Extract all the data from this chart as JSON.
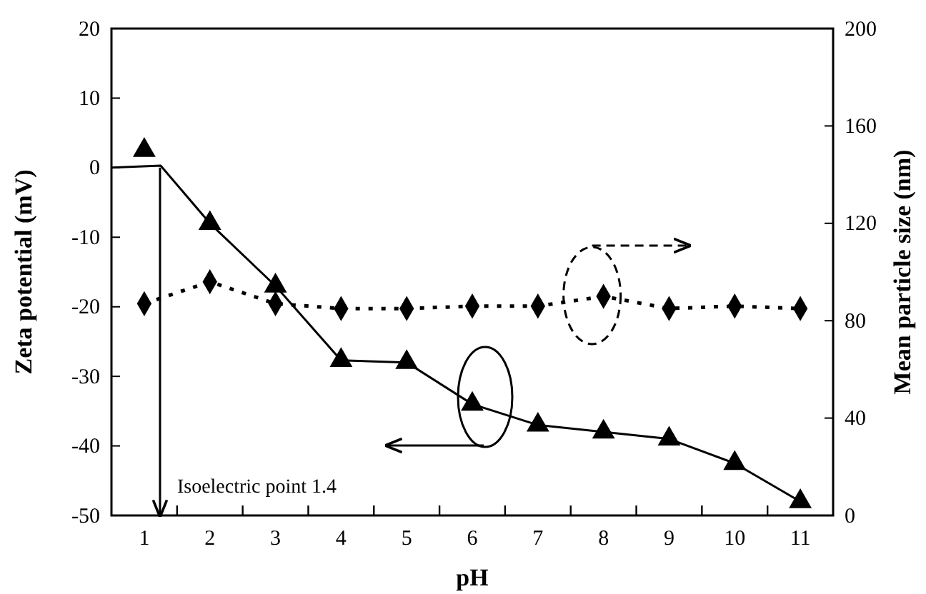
{
  "chart_data": {
    "type": "line",
    "xlabel": "pH",
    "ylabel": "Zeta potential (mV)",
    "y2label": "Mean particle size (nm)",
    "xlim": [
      0.5,
      11.5
    ],
    "xticks": [
      1,
      2,
      3,
      4,
      5,
      6,
      7,
      8,
      9,
      10,
      11,
      {
        "value": 1.5,
        "label": null
      },
      {
        "value": 2.5,
        "label": null
      },
      {
        "value": 3.5,
        "label": null
      },
      {
        "value": 4.5,
        "label": null
      },
      {
        "value": 5.5,
        "label": null
      },
      {
        "value": 6.5,
        "label": null
      },
      {
        "value": 7.5,
        "label": null
      },
      {
        "value": 8.5,
        "label": null
      },
      {
        "value": 9.5,
        "label": null
      },
      {
        "value": 10.5,
        "label": null
      }
    ],
    "ylim": [
      -50,
      20
    ],
    "yticks": [
      -50,
      -40,
      -30,
      -20,
      -10,
      0,
      10,
      20
    ],
    "y2lim": [
      0,
      200
    ],
    "y2ticks": [
      0,
      40,
      80,
      120,
      160,
      200
    ],
    "grid": false,
    "series": [
      {
        "color": "#000000",
        "marker": "none",
        "line_style": "solid",
        "x": [
          0.5,
          1.25,
          2,
          3,
          4,
          5,
          6,
          7,
          8,
          9,
          10,
          11
        ],
        "values": [
          0,
          0.3,
          -8,
          -17,
          -27.7,
          -28,
          -34,
          -37,
          -38,
          -39,
          -42.5,
          -48
        ]
      },
      {
        "type": "scatter",
        "color": "#000000",
        "marker": "triangle",
        "x": [
          1,
          2,
          3,
          4,
          5,
          6,
          7,
          8,
          9,
          10,
          11
        ],
        "values": [
          2.5,
          -8,
          -17,
          -27.7,
          -28,
          -34,
          -37,
          -38,
          -39,
          -42.5,
          -48
        ]
      },
      {
        "axis": "y2",
        "color": "#000000",
        "marker": "diamond",
        "line_style": "dotted",
        "x": [
          1,
          2,
          3,
          4,
          5,
          6,
          7,
          8,
          9,
          10,
          11
        ],
        "values": [
          87,
          96,
          87,
          85,
          85,
          86,
          86,
          90,
          85,
          86,
          85
        ]
      }
    ],
    "ref_lines": [
      {
        "axis": "x",
        "value": 1.24,
        "label": "Isoelectric point 1.4"
      }
    ]
  }
}
